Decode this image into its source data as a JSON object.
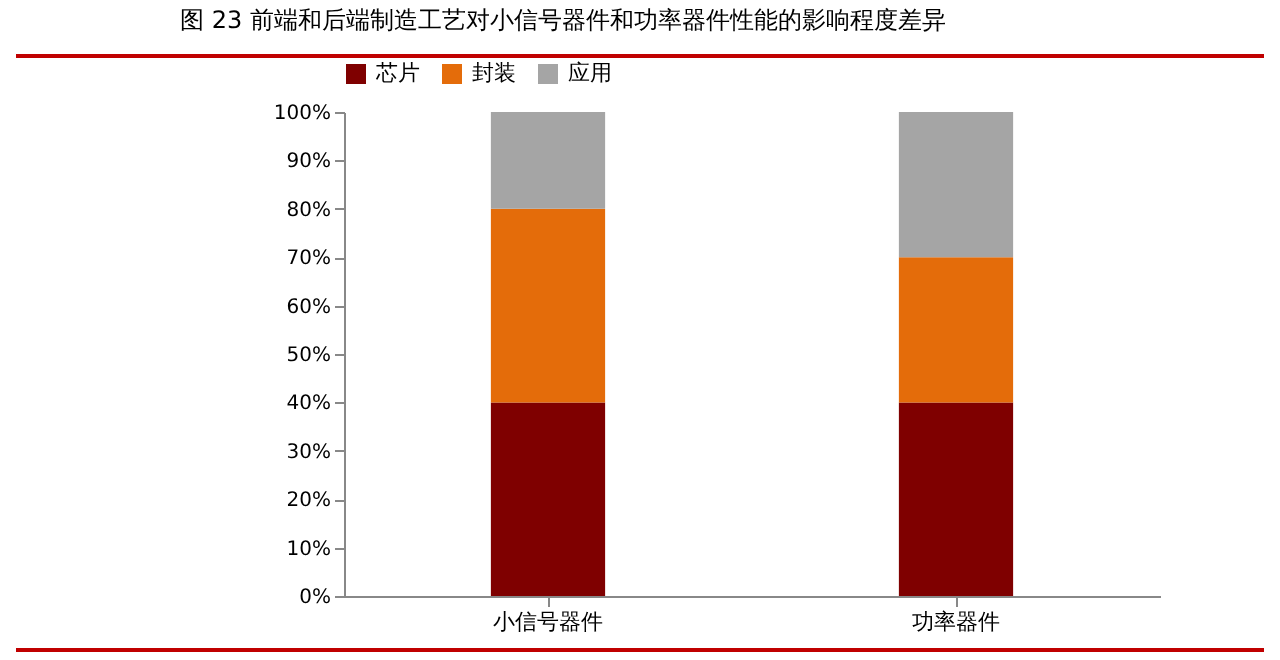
{
  "chart_data": {
    "type": "bar",
    "title": "图 23  前端和后端制造工艺对小信号器件和功率器件性能的影响程度差异",
    "categories": [
      "小信号器件",
      "功率器件"
    ],
    "stacked": true,
    "series": [
      {
        "name": "芯片",
        "color": "#7f0000",
        "values": [
          40,
          40
        ]
      },
      {
        "name": "封装",
        "color": "#e46c0a",
        "values": [
          40,
          30
        ]
      },
      {
        "name": "应用",
        "color": "#a5a5a5",
        "values": [
          20,
          30
        ]
      }
    ],
    "ylim": [
      0,
      100
    ],
    "yticks": [
      {
        "value": 0,
        "label": "0%"
      },
      {
        "value": 10,
        "label": "10%"
      },
      {
        "value": 20,
        "label": "20%"
      },
      {
        "value": 30,
        "label": "30%"
      },
      {
        "value": 40,
        "label": "40%"
      },
      {
        "value": 50,
        "label": "50%"
      },
      {
        "value": 60,
        "label": "60%"
      },
      {
        "value": 70,
        "label": "70%"
      },
      {
        "value": 80,
        "label": "80%"
      },
      {
        "value": 90,
        "label": "90%"
      },
      {
        "value": 100,
        "label": "100%"
      }
    ],
    "grid": false,
    "legend": "top"
  }
}
